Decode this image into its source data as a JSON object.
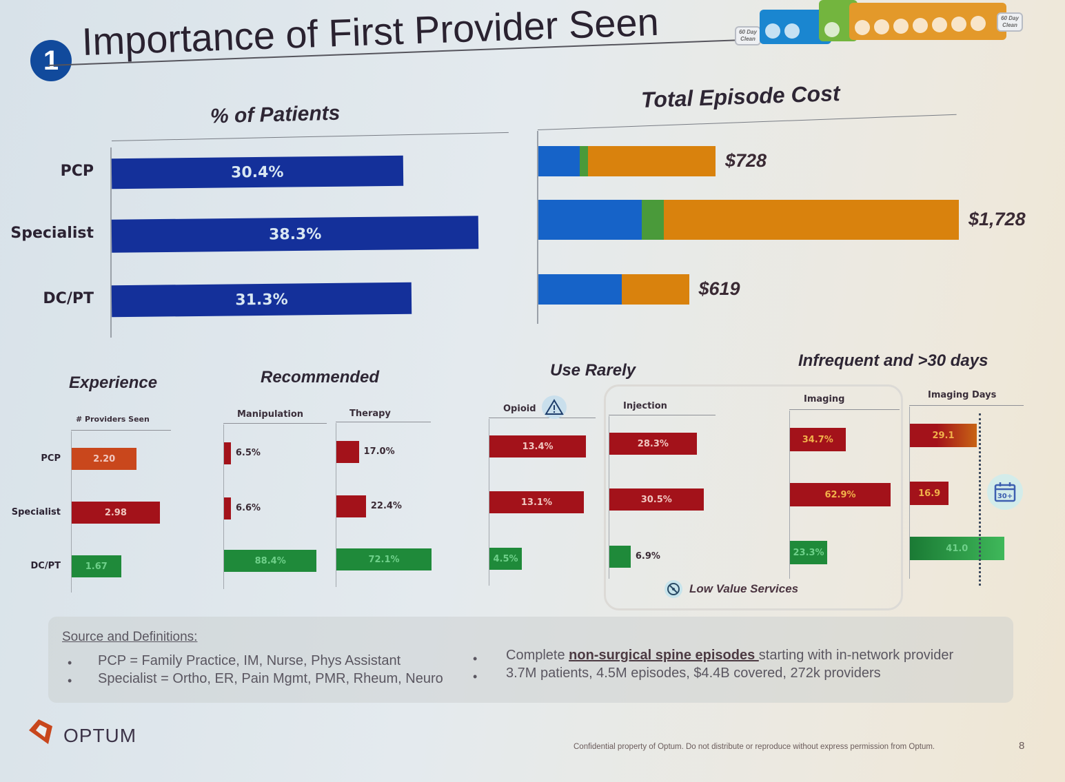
{
  "title": {
    "badge": "1",
    "text": "Importance of First Provider Seen"
  },
  "journey_widget": {
    "left_box": "60 Day Clean",
    "right_box": "60 Day Clean",
    "segments": [
      {
        "name": "blue",
        "color": "#1a86d0",
        "icons": 2
      },
      {
        "name": "green",
        "color": "#73b53e",
        "icons": 1
      },
      {
        "name": "orange",
        "color": "#e3992a",
        "icons": 7
      }
    ]
  },
  "colors": {
    "navy": "#14309a",
    "blue": "#1663c8",
    "green_seg": "#4a9a3a",
    "orange": "#d9820d",
    "red": "#a3121a",
    "red_orange": "#c9471c",
    "green": "#1f8a3a"
  },
  "chart_data": [
    {
      "type": "bar",
      "title": "% of Patients",
      "categories": [
        "PCP",
        "Specialist",
        "DC/PT"
      ],
      "values": [
        30.4,
        38.3,
        31.3
      ],
      "labels": [
        "30.4%",
        "38.3%",
        "31.3%"
      ],
      "xlim": [
        0,
        40
      ],
      "grid": false
    },
    {
      "type": "bar",
      "stacked": true,
      "title": "Total Episode Cost",
      "categories": [
        "PCP",
        "Specialist",
        "DC/PT"
      ],
      "series": [
        {
          "name": "blue",
          "values": [
            170,
            425,
            342
          ]
        },
        {
          "name": "green",
          "values": [
            35,
            90,
            0
          ]
        },
        {
          "name": "orange",
          "values": [
            523,
            1213,
            277
          ]
        }
      ],
      "totals": [
        728,
        1728,
        619
      ],
      "labels": [
        "$728",
        "$1,728",
        "$619"
      ],
      "xlim": [
        0,
        1750
      ]
    },
    {
      "type": "bar",
      "group": "Experience",
      "title": "# Providers Seen",
      "categories": [
        "PCP",
        "Specialist",
        "DC/PT"
      ],
      "values": [
        2.2,
        2.98,
        1.67
      ],
      "labels": [
        "2.20",
        "2.98",
        "1.67"
      ],
      "bar_colors": [
        "red_orange",
        "red",
        "green"
      ],
      "label_inside": [
        true,
        true,
        true
      ],
      "xlim": [
        0,
        3.5
      ]
    },
    {
      "type": "bar",
      "group": "Recommended",
      "title": "Manipulation",
      "categories": [
        "PCP",
        "Specialist",
        "DC/PT"
      ],
      "values": [
        6.5,
        6.6,
        88.4
      ],
      "labels": [
        "6.5%",
        "6.6%",
        "88.4%"
      ],
      "bar_colors": [
        "red",
        "red",
        "green"
      ],
      "label_inside": [
        false,
        false,
        true
      ],
      "xlim": [
        0,
        100
      ]
    },
    {
      "type": "bar",
      "group": "Recommended",
      "title": "Therapy",
      "categories": [
        "PCP",
        "Specialist",
        "DC/PT"
      ],
      "values": [
        17.0,
        22.4,
        72.1
      ],
      "labels": [
        "17.0%",
        "22.4%",
        "72.1%"
      ],
      "bar_colors": [
        "red",
        "red",
        "green"
      ],
      "label_inside": [
        false,
        false,
        true
      ],
      "xlim": [
        0,
        72.1
      ]
    },
    {
      "type": "bar",
      "group": "Use Rarely",
      "title": "Opioid",
      "categories": [
        "PCP",
        "Specialist",
        "DC/PT"
      ],
      "values": [
        13.4,
        13.1,
        4.5
      ],
      "labels": [
        "13.4%",
        "13.1%",
        "4.5%"
      ],
      "bar_colors": [
        "red",
        "red",
        "green"
      ],
      "label_inside": [
        true,
        true,
        true
      ],
      "xlim": [
        0,
        13.4
      ]
    },
    {
      "type": "bar",
      "group": "Use Rarely",
      "title": "Injection",
      "categories": [
        "PCP",
        "Specialist",
        "DC/PT"
      ],
      "values": [
        28.3,
        30.5,
        6.9
      ],
      "labels": [
        "28.3%",
        "30.5%",
        "6.9%"
      ],
      "bar_colors": [
        "red",
        "red",
        "green"
      ],
      "label_inside": [
        true,
        true,
        false
      ],
      "xlim": [
        0,
        33.5
      ]
    },
    {
      "type": "bar",
      "group": "Infrequent and >30 days",
      "title": "Imaging",
      "categories": [
        "PCP",
        "Specialist",
        "DC/PT"
      ],
      "values": [
        34.7,
        62.9,
        23.3
      ],
      "labels": [
        "34.7%",
        "62.9%",
        "23.3%"
      ],
      "bar_colors": [
        "red",
        "red",
        "green"
      ],
      "label_inside": [
        true,
        true,
        true
      ],
      "xlim": [
        0,
        62.9
      ]
    },
    {
      "type": "bar",
      "group": "Infrequent and >30 days",
      "title": "Imaging Days",
      "categories": [
        "PCP",
        "Specialist",
        "DC/PT"
      ],
      "values": [
        29.1,
        16.9,
        41.0
      ],
      "labels": [
        "29.1",
        "16.9",
        "41.0"
      ],
      "bar_colors": [
        "red",
        "red",
        "green"
      ],
      "label_inside": [
        true,
        true,
        true
      ],
      "reference_line": 30,
      "reference_label": "30+",
      "xlim": [
        0,
        42
      ]
    }
  ],
  "sections": {
    "experience": "Experience",
    "recommended": "Recommended",
    "use_rarely": "Use Rarely",
    "infrequent": "Infrequent and >30 days",
    "low_value": "Low Value Services"
  },
  "source": {
    "heading": "Source and Definitions:",
    "left": [
      "PCP = Family Practice, IM, Nurse, Phys Assistant",
      "Specialist = Ortho, ER, Pain Mgmt, PMR, Rheum, Neuro"
    ],
    "right_1_pre": "Complete ",
    "right_1_link": "non-surgical spine episodes ",
    "right_1_post": "starting with in-network provider",
    "right_2": "3.7M patients, 4.5M episodes, $4.4B covered, 272k providers"
  },
  "footer": {
    "logo": "OPTUM",
    "confidential": "Confidential property of Optum. Do not distribute or reproduce without express permission from Optum.",
    "page": "8"
  }
}
